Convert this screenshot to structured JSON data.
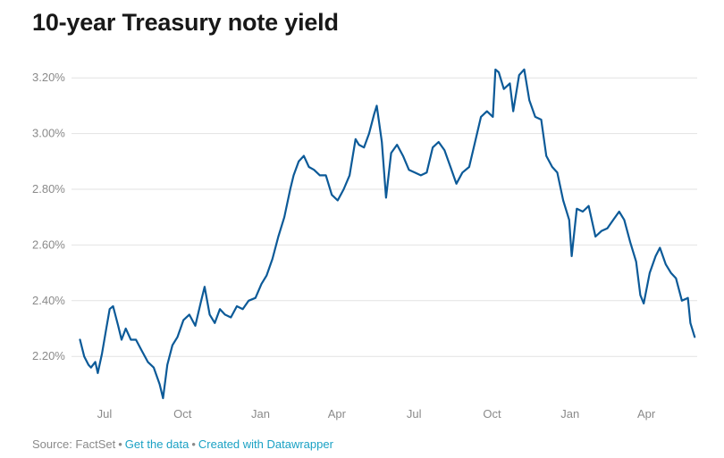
{
  "title": "10-year Treasury note yield",
  "footer": {
    "source": "Source: FactSet",
    "get_data": "Get the data",
    "created_with": "Created with Datawrapper"
  },
  "colors": {
    "line": "#0c5a98",
    "link": "#1aa1c4"
  },
  "chart_data": {
    "type": "line",
    "title": "10-year Treasury note yield",
    "xlabel": "",
    "ylabel": "",
    "ylim": [
      2.05,
      3.3
    ],
    "xlim": [
      "2017-05-23",
      "2019-05-31"
    ],
    "y_ticks": [
      {
        "value": 2.2,
        "label": "2.20%"
      },
      {
        "value": 2.4,
        "label": "2.40%"
      },
      {
        "value": 2.6,
        "label": "2.60%"
      },
      {
        "value": 2.8,
        "label": "2.80%"
      },
      {
        "value": 3.0,
        "label": "3.00%"
      },
      {
        "value": 3.2,
        "label": "3.20%"
      }
    ],
    "x_ticks": [
      {
        "date": "2017-07-01",
        "label": "Jul"
      },
      {
        "date": "2017-10-01",
        "label": "Oct"
      },
      {
        "date": "2018-01-01",
        "label": "Jan"
      },
      {
        "date": "2018-04-01",
        "label": "Apr"
      },
      {
        "date": "2018-07-01",
        "label": "Jul"
      },
      {
        "date": "2018-10-01",
        "label": "Oct"
      },
      {
        "date": "2019-01-01",
        "label": "Jan"
      },
      {
        "date": "2019-04-01",
        "label": "Apr"
      }
    ],
    "grid": true,
    "series": [
      {
        "points": [
          [
            "2017-06-02",
            2.26
          ],
          [
            "2017-06-07",
            2.2
          ],
          [
            "2017-06-12",
            2.17
          ],
          [
            "2017-06-15",
            2.16
          ],
          [
            "2017-06-20",
            2.18
          ],
          [
            "2017-06-23",
            2.14
          ],
          [
            "2017-06-28",
            2.21
          ],
          [
            "2017-07-03",
            2.3
          ],
          [
            "2017-07-07",
            2.37
          ],
          [
            "2017-07-11",
            2.38
          ],
          [
            "2017-07-17",
            2.31
          ],
          [
            "2017-07-21",
            2.26
          ],
          [
            "2017-07-26",
            2.3
          ],
          [
            "2017-08-01",
            2.26
          ],
          [
            "2017-08-07",
            2.26
          ],
          [
            "2017-08-14",
            2.22
          ],
          [
            "2017-08-21",
            2.18
          ],
          [
            "2017-08-28",
            2.16
          ],
          [
            "2017-09-04",
            2.1
          ],
          [
            "2017-09-08",
            2.05
          ],
          [
            "2017-09-13",
            2.17
          ],
          [
            "2017-09-19",
            2.24
          ],
          [
            "2017-09-25",
            2.27
          ],
          [
            "2017-10-02",
            2.33
          ],
          [
            "2017-10-09",
            2.35
          ],
          [
            "2017-10-16",
            2.31
          ],
          [
            "2017-10-23",
            2.4
          ],
          [
            "2017-10-27",
            2.45
          ],
          [
            "2017-11-02",
            2.35
          ],
          [
            "2017-11-08",
            2.32
          ],
          [
            "2017-11-14",
            2.37
          ],
          [
            "2017-11-20",
            2.35
          ],
          [
            "2017-11-27",
            2.34
          ],
          [
            "2017-12-04",
            2.38
          ],
          [
            "2017-12-11",
            2.37
          ],
          [
            "2017-12-18",
            2.4
          ],
          [
            "2017-12-26",
            2.41
          ],
          [
            "2018-01-02",
            2.46
          ],
          [
            "2018-01-08",
            2.49
          ],
          [
            "2018-01-15",
            2.55
          ],
          [
            "2018-01-22",
            2.63
          ],
          [
            "2018-01-29",
            2.7
          ],
          [
            "2018-02-05",
            2.8
          ],
          [
            "2018-02-09",
            2.85
          ],
          [
            "2018-02-15",
            2.9
          ],
          [
            "2018-02-21",
            2.92
          ],
          [
            "2018-02-27",
            2.88
          ],
          [
            "2018-03-05",
            2.87
          ],
          [
            "2018-03-12",
            2.85
          ],
          [
            "2018-03-19",
            2.85
          ],
          [
            "2018-03-26",
            2.78
          ],
          [
            "2018-04-02",
            2.76
          ],
          [
            "2018-04-09",
            2.8
          ],
          [
            "2018-04-16",
            2.85
          ],
          [
            "2018-04-23",
            2.98
          ],
          [
            "2018-04-27",
            2.96
          ],
          [
            "2018-05-03",
            2.95
          ],
          [
            "2018-05-09",
            3.0
          ],
          [
            "2018-05-15",
            3.07
          ],
          [
            "2018-05-18",
            3.1
          ],
          [
            "2018-05-24",
            2.97
          ],
          [
            "2018-05-29",
            2.77
          ],
          [
            "2018-06-04",
            2.93
          ],
          [
            "2018-06-11",
            2.96
          ],
          [
            "2018-06-18",
            2.92
          ],
          [
            "2018-06-25",
            2.87
          ],
          [
            "2018-07-02",
            2.86
          ],
          [
            "2018-07-09",
            2.85
          ],
          [
            "2018-07-16",
            2.86
          ],
          [
            "2018-07-23",
            2.95
          ],
          [
            "2018-07-30",
            2.97
          ],
          [
            "2018-08-06",
            2.94
          ],
          [
            "2018-08-13",
            2.88
          ],
          [
            "2018-08-20",
            2.82
          ],
          [
            "2018-08-27",
            2.86
          ],
          [
            "2018-09-04",
            2.88
          ],
          [
            "2018-09-11",
            2.97
          ],
          [
            "2018-09-18",
            3.06
          ],
          [
            "2018-09-25",
            3.08
          ],
          [
            "2018-10-02",
            3.06
          ],
          [
            "2018-10-05",
            3.23
          ],
          [
            "2018-10-09",
            3.22
          ],
          [
            "2018-10-15",
            3.16
          ],
          [
            "2018-10-22",
            3.18
          ],
          [
            "2018-10-26",
            3.08
          ],
          [
            "2018-11-02",
            3.21
          ],
          [
            "2018-11-08",
            3.23
          ],
          [
            "2018-11-14",
            3.12
          ],
          [
            "2018-11-21",
            3.06
          ],
          [
            "2018-11-28",
            3.05
          ],
          [
            "2018-12-04",
            2.92
          ],
          [
            "2018-12-11",
            2.88
          ],
          [
            "2018-12-17",
            2.86
          ],
          [
            "2018-12-24",
            2.76
          ],
          [
            "2018-12-31",
            2.69
          ],
          [
            "2019-01-03",
            2.56
          ],
          [
            "2019-01-09",
            2.73
          ],
          [
            "2019-01-16",
            2.72
          ],
          [
            "2019-01-23",
            2.74
          ],
          [
            "2019-01-31",
            2.63
          ],
          [
            "2019-02-07",
            2.65
          ],
          [
            "2019-02-14",
            2.66
          ],
          [
            "2019-02-21",
            2.69
          ],
          [
            "2019-02-28",
            2.72
          ],
          [
            "2019-03-06",
            2.69
          ],
          [
            "2019-03-13",
            2.61
          ],
          [
            "2019-03-20",
            2.54
          ],
          [
            "2019-03-25",
            2.42
          ],
          [
            "2019-03-29",
            2.39
          ],
          [
            "2019-04-05",
            2.5
          ],
          [
            "2019-04-12",
            2.56
          ],
          [
            "2019-04-17",
            2.59
          ],
          [
            "2019-04-24",
            2.53
          ],
          [
            "2019-04-30",
            2.5
          ],
          [
            "2019-05-06",
            2.48
          ],
          [
            "2019-05-13",
            2.4
          ],
          [
            "2019-05-20",
            2.41
          ],
          [
            "2019-05-23",
            2.32
          ],
          [
            "2019-05-28",
            2.27
          ]
        ]
      }
    ]
  }
}
